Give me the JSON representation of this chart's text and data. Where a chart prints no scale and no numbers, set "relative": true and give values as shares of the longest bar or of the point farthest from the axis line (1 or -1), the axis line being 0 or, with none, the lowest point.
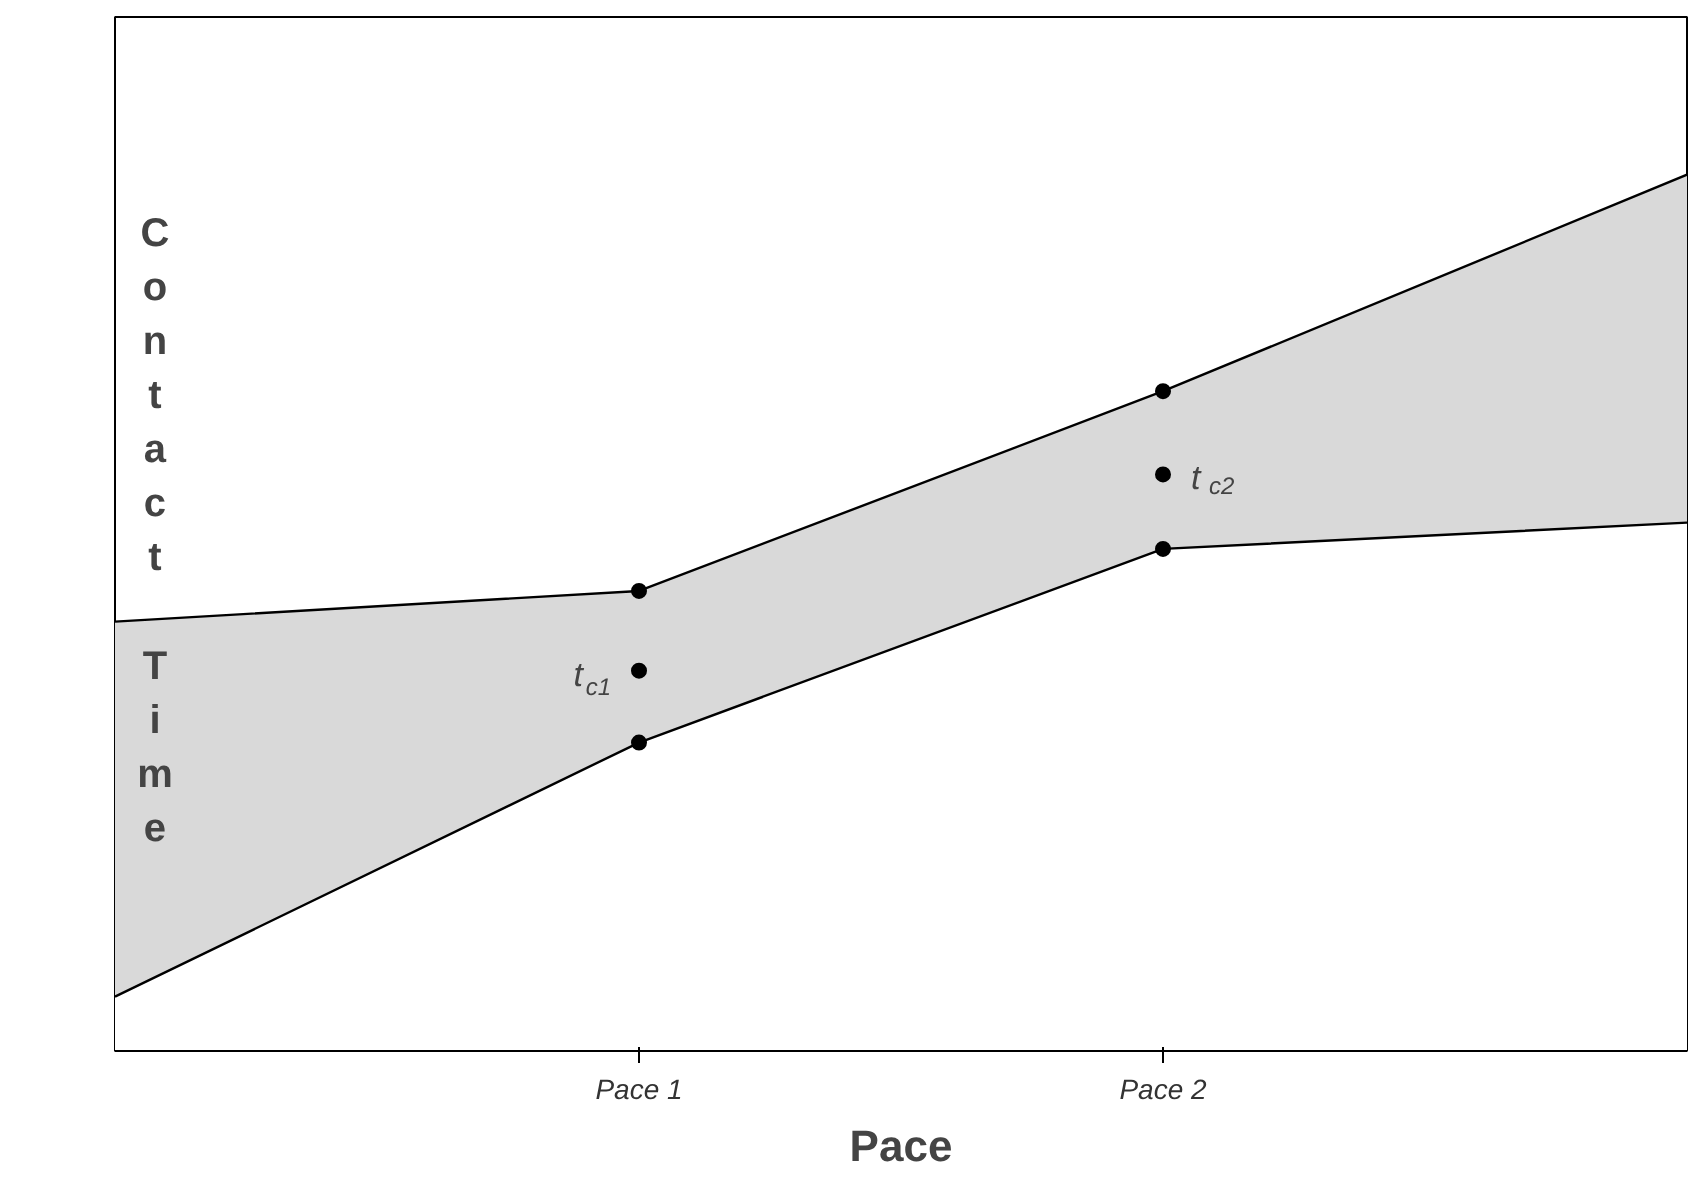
{
  "chart_data": {
    "type": "area",
    "relative": true,
    "xlabel": "Pace",
    "ylabel": "Contact Time",
    "categories": [
      null,
      "Pace 1",
      "Pace 2",
      null
    ],
    "series": [
      {
        "color": "#d9d9d9",
        "values": [
          0.49,
          0.525,
          0.753,
          1
        ]
      },
      {
        "color": "#ffffff",
        "values": [
          0.062,
          0.352,
          0.573,
          0.603
        ]
      },
      {
        "type": "scatter",
        "marker": "circle",
        "color": "#000000",
        "values": [
          null,
          0.434,
          0.658,
          null
        ]
      },
      {
        "type": "scatter",
        "marker": "circle",
        "color": "#000000",
        "values": [
          null,
          0.525,
          0.753,
          null
        ]
      },
      {
        "type": "scatter",
        "marker": "circle",
        "color": "#000000",
        "values": [
          null,
          0.352,
          0.573,
          null
        ]
      }
    ],
    "annotations": [
      {
        "text": "t$_{c1}$",
        "x": "Pace 1",
        "y": 0.434
      },
      {
        "text": "t$_{c2}$",
        "x": "Pace 2",
        "y": 0.658
      }
    ],
    "line_style": "solid",
    "grid": false
  }
}
